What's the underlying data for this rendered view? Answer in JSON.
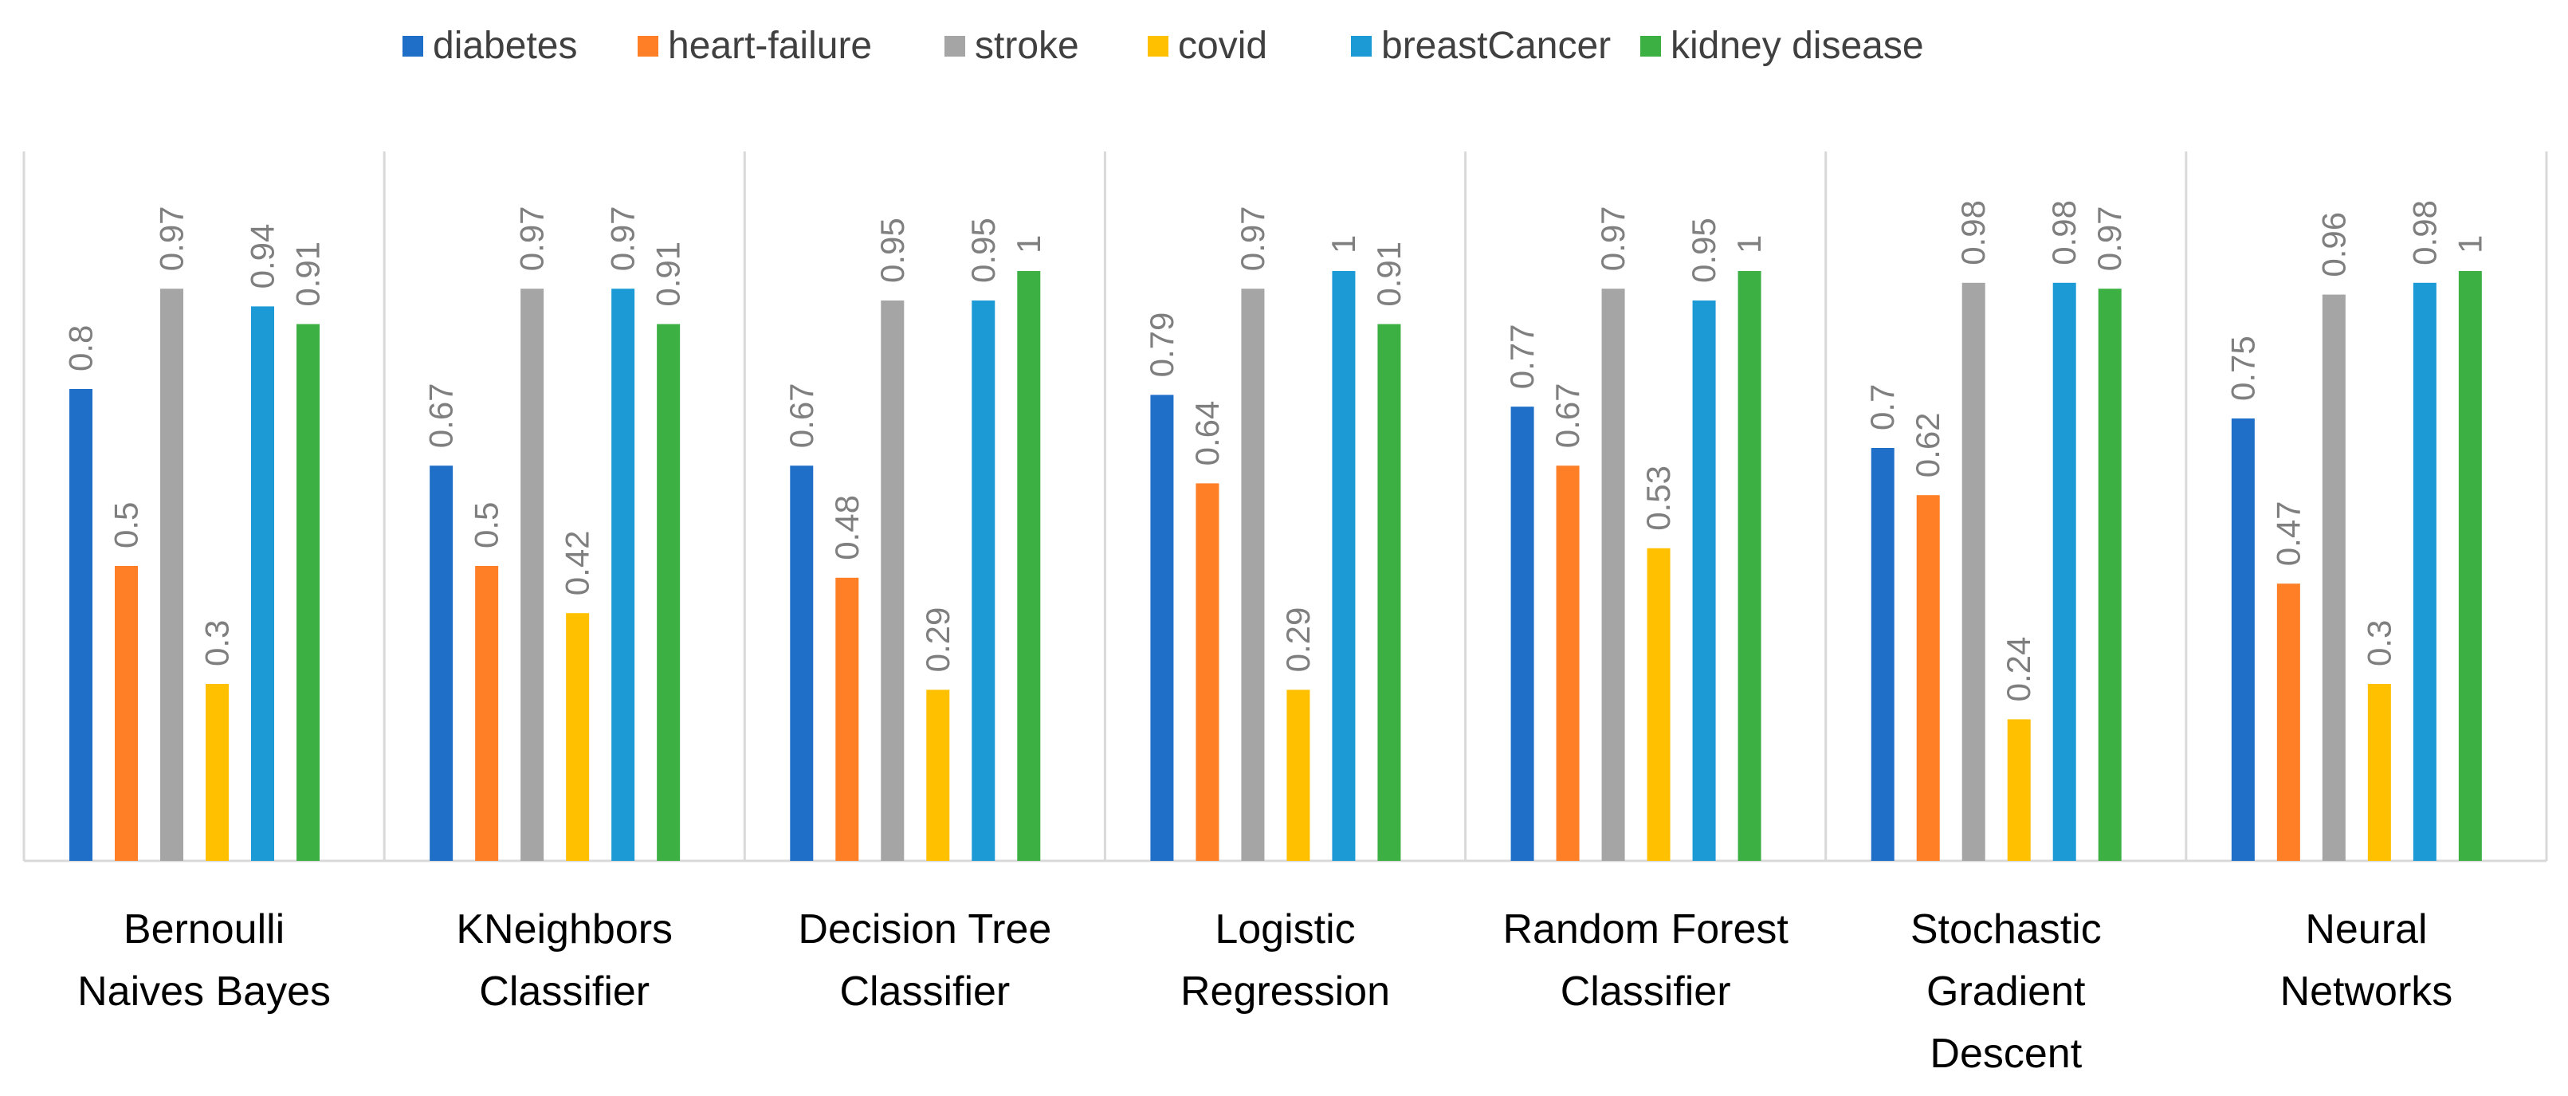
{
  "chart_data": {
    "type": "bar",
    "title": "",
    "xlabel": "",
    "ylabel": "",
    "ylim": [
      0,
      1.1
    ],
    "legend_position": "top",
    "grid": false,
    "categories": [
      [
        "Bernoulli",
        "Naives Bayes"
      ],
      [
        "KNeighbors",
        "Classifier"
      ],
      [
        "Decision Tree",
        "Classifier"
      ],
      [
        "Logistic",
        "Regression"
      ],
      [
        "Random Forest",
        "Classifier"
      ],
      [
        "Stochastic",
        "Gradient",
        "Descent"
      ],
      [
        "Neural",
        "Networks"
      ]
    ],
    "series": [
      {
        "name": "diabetes",
        "color": "#1F6FC8",
        "values": [
          0.8,
          0.67,
          0.67,
          0.79,
          0.77,
          0.7,
          0.75
        ]
      },
      {
        "name": "heart-failure",
        "color": "#FF7F27",
        "values": [
          0.5,
          0.5,
          0.48,
          0.64,
          0.67,
          0.62,
          0.47
        ]
      },
      {
        "name": "stroke",
        "color": "#A5A5A5",
        "values": [
          0.97,
          0.97,
          0.95,
          0.97,
          0.97,
          0.98,
          0.96
        ]
      },
      {
        "name": "covid",
        "color": "#FFC000",
        "values": [
          0.3,
          0.42,
          0.29,
          0.29,
          0.53,
          0.24,
          0.3
        ]
      },
      {
        "name": "breastCancer",
        "color": "#1B9AD6",
        "values": [
          0.94,
          0.97,
          0.95,
          1,
          0.95,
          0.98,
          0.98
        ]
      },
      {
        "name": "kidney disease",
        "color": "#3CB043",
        "values": [
          0.91,
          0.91,
          1,
          0.91,
          1,
          0.97,
          1
        ]
      }
    ]
  }
}
